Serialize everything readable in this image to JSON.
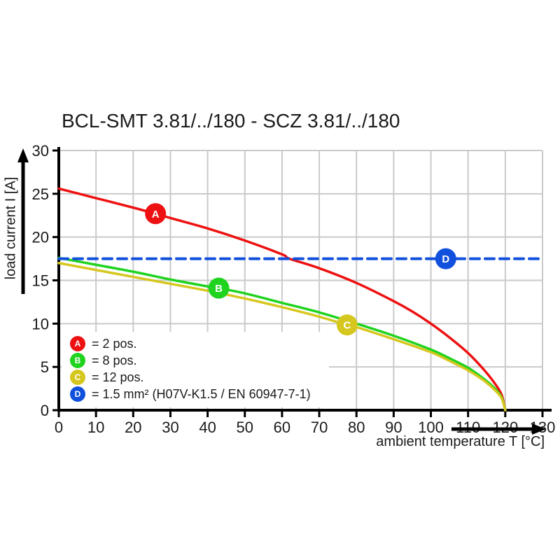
{
  "title": "BCL-SMT 3.81/../180 - SCZ 3.81/../180",
  "chart_data": {
    "type": "line",
    "title": "BCL-SMT 3.81/../180 - SCZ 3.81/../180",
    "xlabel": "ambient temperature T [°C]",
    "ylabel": "load current I [A]",
    "xlim": [
      0,
      130
    ],
    "ylim": [
      0,
      30
    ],
    "x_ticks": [
      0,
      10,
      20,
      30,
      40,
      50,
      60,
      70,
      80,
      90,
      100,
      110,
      120,
      130
    ],
    "y_ticks": [
      0,
      5,
      10,
      15,
      20,
      25,
      30
    ],
    "grid": true,
    "grid_color": "#cacaca",
    "axis_color": "#000000",
    "legend_position": "inside-lower-left",
    "series": [
      {
        "id": "A",
        "name": "2 pos.",
        "color": "#ee1111",
        "line_style": "solid",
        "marker_at": {
          "x": 26,
          "y": 22.7
        },
        "points": [
          [
            0,
            25.6
          ],
          [
            10,
            24.5
          ],
          [
            20,
            23.4
          ],
          [
            26,
            22.7
          ],
          [
            30,
            22.2
          ],
          [
            40,
            21.0
          ],
          [
            50,
            19.6
          ],
          [
            60,
            18.0
          ],
          [
            62,
            17.5
          ],
          [
            70,
            16.4
          ],
          [
            80,
            14.7
          ],
          [
            90,
            12.6
          ],
          [
            95,
            11.4
          ],
          [
            100,
            10.0
          ],
          [
            105,
            8.4
          ],
          [
            110,
            6.6
          ],
          [
            114,
            4.8
          ],
          [
            117,
            3.2
          ],
          [
            119,
            1.8
          ],
          [
            120,
            0
          ]
        ]
      },
      {
        "id": "B",
        "name": "8 pos.",
        "color": "#1fd31f",
        "line_style": "solid",
        "marker_at": {
          "x": 43,
          "y": 14.1
        },
        "points": [
          [
            0,
            17.6
          ],
          [
            10,
            16.8
          ],
          [
            20,
            16.0
          ],
          [
            30,
            15.1
          ],
          [
            40,
            14.3
          ],
          [
            43,
            14.1
          ],
          [
            50,
            13.5
          ],
          [
            60,
            12.4
          ],
          [
            70,
            11.3
          ],
          [
            80,
            10.0
          ],
          [
            90,
            8.6
          ],
          [
            100,
            7.0
          ],
          [
            105,
            6.0
          ],
          [
            110,
            4.9
          ],
          [
            114,
            3.7
          ],
          [
            117,
            2.6
          ],
          [
            119,
            1.5
          ],
          [
            120,
            0
          ]
        ]
      },
      {
        "id": "C",
        "name": "12 pos.",
        "color": "#d6c71e",
        "line_style": "solid",
        "marker_at": {
          "x": 77.5,
          "y": 9.85
        },
        "points": [
          [
            0,
            17.0
          ],
          [
            10,
            16.2
          ],
          [
            20,
            15.4
          ],
          [
            30,
            14.6
          ],
          [
            40,
            13.8
          ],
          [
            50,
            12.9
          ],
          [
            60,
            11.9
          ],
          [
            70,
            10.8
          ],
          [
            77,
            9.9
          ],
          [
            80,
            9.6
          ],
          [
            90,
            8.2
          ],
          [
            100,
            6.7
          ],
          [
            105,
            5.7
          ],
          [
            110,
            4.6
          ],
          [
            114,
            3.5
          ],
          [
            117,
            2.4
          ],
          [
            119,
            1.4
          ],
          [
            120,
            0
          ]
        ]
      },
      {
        "id": "D",
        "name": "1.5 mm² (H07V-K1.5 / EN 60947-7-1)",
        "color": "#1150dc",
        "line_style": "dashed",
        "marker_at": {
          "x": 104,
          "y": 17.5
        },
        "points": [
          [
            0,
            17.5
          ],
          [
            130,
            17.5
          ]
        ]
      }
    ]
  },
  "legend": {
    "items": [
      {
        "letter": "A",
        "label": "= 2 pos.",
        "color": "#ee1111"
      },
      {
        "letter": "B",
        "label": "= 8 pos.",
        "color": "#1fd31f"
      },
      {
        "letter": "C",
        "label": "= 12 pos.",
        "color": "#d6c71e"
      },
      {
        "letter": "D",
        "label": "= 1.5 mm² (H07V-K1.5 / EN 60947-7-1)",
        "color": "#1150dc"
      }
    ]
  }
}
